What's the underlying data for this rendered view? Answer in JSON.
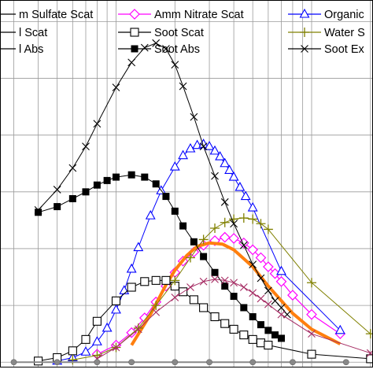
{
  "chart_data": {
    "type": "line",
    "title": "",
    "xlabel": "",
    "ylabel": "",
    "x_scale": "log",
    "grid": true,
    "legend": "top",
    "series": [
      {
        "name": "m Sulfate Scat",
        "color": "#000000",
        "marker": "none",
        "width": 1,
        "points": [
          [
            0.05,
            0.0
          ],
          [
            0.1,
            0.0
          ],
          [
            0.2,
            0.0
          ],
          [
            0.5,
            0.0
          ]
        ]
      },
      {
        "name": "Amm Nitrate Scat",
        "color": "#ff00ff",
        "marker": "diamond",
        "width": 1.2,
        "points": [
          [
            0.08,
            0.7
          ],
          [
            0.1,
            1.5
          ],
          [
            0.12,
            2.6
          ],
          [
            0.14,
            3.9
          ],
          [
            0.16,
            5.3
          ],
          [
            0.18,
            6.7
          ],
          [
            0.2,
            7.9
          ],
          [
            0.22,
            8.9
          ],
          [
            0.25,
            9.7
          ],
          [
            0.28,
            10.3
          ],
          [
            0.32,
            10.7
          ],
          [
            0.36,
            11.0
          ],
          [
            0.4,
            10.9
          ],
          [
            0.45,
            10.5
          ],
          [
            0.5,
            9.9
          ],
          [
            0.55,
            9.2
          ],
          [
            0.6,
            8.4
          ],
          [
            0.65,
            7.8
          ],
          [
            0.7,
            7.1
          ],
          [
            0.8,
            5.9
          ],
          [
            1.0,
            4.2
          ],
          [
            1.4,
            2.5
          ]
        ]
      },
      {
        "name": "Organic",
        "color": "#0000ff",
        "marker": "triangle",
        "width": 1,
        "points": [
          [
            0.05,
            0.1
          ],
          [
            0.06,
            0.4
          ],
          [
            0.07,
            0.9
          ],
          [
            0.08,
            1.8
          ],
          [
            0.09,
            3.0
          ],
          [
            0.1,
            4.6
          ],
          [
            0.11,
            6.3
          ],
          [
            0.12,
            8.2
          ],
          [
            0.13,
            10.1
          ],
          [
            0.15,
            12.9
          ],
          [
            0.17,
            15.1
          ],
          [
            0.2,
            17.2
          ],
          [
            0.22,
            18.2
          ],
          [
            0.24,
            18.8
          ],
          [
            0.26,
            19.1
          ],
          [
            0.28,
            19.2
          ],
          [
            0.3,
            19.0
          ],
          [
            0.32,
            18.6
          ],
          [
            0.34,
            18.1
          ],
          [
            0.36,
            17.5
          ],
          [
            0.38,
            16.9
          ],
          [
            0.4,
            16.3
          ],
          [
            0.43,
            15.4
          ],
          [
            0.46,
            14.6
          ],
          [
            0.5,
            13.6
          ],
          [
            0.7,
            8.0
          ],
          [
            1.4,
            2.8
          ]
        ]
      },
      {
        "name": "l Scat",
        "color": "#ff7f0e",
        "marker": "none",
        "width": 4,
        "points": [
          [
            0.12,
            1.5
          ],
          [
            0.15,
            4.2
          ],
          [
            0.18,
            6.8
          ],
          [
            0.2,
            8.1
          ],
          [
            0.23,
            9.4
          ],
          [
            0.26,
            10.2
          ],
          [
            0.3,
            10.5
          ],
          [
            0.35,
            10.4
          ],
          [
            0.4,
            9.9
          ],
          [
            0.5,
            8.4
          ],
          [
            0.6,
            6.7
          ],
          [
            0.8,
            4.3
          ],
          [
            1.0,
            2.9
          ],
          [
            1.4,
            1.6
          ]
        ]
      },
      {
        "name": "Soot Scat",
        "color": "#000000",
        "marker": "square-open",
        "width": 1,
        "points": [
          [
            0.04,
            0.1
          ],
          [
            0.05,
            0.4
          ],
          [
            0.06,
            1.0
          ],
          [
            0.07,
            2.0
          ],
          [
            0.08,
            3.6
          ],
          [
            0.1,
            5.4
          ],
          [
            0.12,
            6.6
          ],
          [
            0.14,
            7.1
          ],
          [
            0.16,
            7.2
          ],
          [
            0.18,
            7.2
          ],
          [
            0.2,
            6.7
          ],
          [
            0.22,
            6.2
          ],
          [
            0.25,
            5.5
          ],
          [
            0.28,
            4.8
          ],
          [
            0.32,
            4.0
          ],
          [
            0.36,
            3.4
          ],
          [
            0.4,
            2.9
          ],
          [
            0.45,
            2.4
          ],
          [
            0.5,
            2.0
          ],
          [
            0.55,
            1.7
          ],
          [
            0.6,
            1.5
          ],
          [
            1.0,
            0.7
          ],
          [
            2.0,
            0.3
          ]
        ]
      },
      {
        "name": "Water S",
        "color": "#808000",
        "marker": "plus",
        "width": 1,
        "points": [
          [
            0.06,
            0.2
          ],
          [
            0.08,
            0.6
          ],
          [
            0.1,
            1.3
          ],
          [
            0.13,
            3.0
          ],
          [
            0.16,
            5.0
          ],
          [
            0.2,
            7.2
          ],
          [
            0.24,
            9.2
          ],
          [
            0.28,
            10.8
          ],
          [
            0.32,
            11.8
          ],
          [
            0.36,
            12.3
          ],
          [
            0.4,
            12.6
          ],
          [
            0.45,
            12.7
          ],
          [
            0.5,
            12.6
          ],
          [
            0.55,
            12.2
          ],
          [
            0.6,
            11.7
          ],
          [
            1.0,
            7.0
          ],
          [
            2.0,
            2.5
          ]
        ]
      },
      {
        "name": "l Abs",
        "color": "#000000",
        "marker": "none",
        "width": 1,
        "points": [
          [
            0.05,
            0.0
          ],
          [
            0.1,
            0.0
          ],
          [
            0.2,
            0.0
          ],
          [
            0.5,
            0.0
          ]
        ]
      },
      {
        "name": "Soot Abs",
        "color": "#000000",
        "marker": "square-filled",
        "width": 1,
        "points": [
          [
            0.04,
            13.2
          ],
          [
            0.05,
            13.7
          ],
          [
            0.06,
            14.4
          ],
          [
            0.07,
            15.0
          ],
          [
            0.08,
            15.6
          ],
          [
            0.09,
            16.0
          ],
          [
            0.1,
            16.3
          ],
          [
            0.12,
            16.5
          ],
          [
            0.14,
            16.3
          ],
          [
            0.16,
            15.7
          ],
          [
            0.18,
            14.6
          ],
          [
            0.2,
            13.3
          ],
          [
            0.22,
            12.0
          ],
          [
            0.25,
            10.6
          ],
          [
            0.28,
            9.3
          ],
          [
            0.32,
            7.9
          ],
          [
            0.36,
            6.7
          ],
          [
            0.4,
            5.8
          ],
          [
            0.45,
            4.8
          ],
          [
            0.5,
            4.0
          ],
          [
            0.55,
            3.3
          ],
          [
            0.6,
            2.8
          ],
          [
            0.65,
            2.4
          ],
          [
            0.7,
            2.1
          ]
        ]
      },
      {
        "name": "Soot Ex",
        "color": "#000000",
        "marker": "x",
        "width": 1,
        "points": [
          [
            0.04,
            13.4
          ],
          [
            0.05,
            15.2
          ],
          [
            0.06,
            17.1
          ],
          [
            0.07,
            19.0
          ],
          [
            0.08,
            21.0
          ],
          [
            0.1,
            24.2
          ],
          [
            0.12,
            26.4
          ],
          [
            0.14,
            27.7
          ],
          [
            0.16,
            28.1
          ],
          [
            0.18,
            27.6
          ],
          [
            0.2,
            26.2
          ],
          [
            0.22,
            24.3
          ],
          [
            0.25,
            21.6
          ],
          [
            0.28,
            19.0
          ],
          [
            0.32,
            16.4
          ],
          [
            0.36,
            14.1
          ],
          [
            0.4,
            12.2
          ],
          [
            0.45,
            10.3
          ],
          [
            0.5,
            8.6
          ],
          [
            0.55,
            7.4
          ],
          [
            0.6,
            6.3
          ],
          [
            0.65,
            5.4
          ],
          [
            0.7,
            4.8
          ],
          [
            0.75,
            4.2
          ]
        ]
      },
      {
        "name": "",
        "color": "#a52a62",
        "marker": "x",
        "width": 1,
        "points": [
          [
            0.08,
            0.3
          ],
          [
            0.1,
            1.3
          ],
          [
            0.13,
            2.9
          ],
          [
            0.16,
            4.4
          ],
          [
            0.2,
            5.7
          ],
          [
            0.24,
            6.6
          ],
          [
            0.28,
            7.1
          ],
          [
            0.32,
            7.3
          ],
          [
            0.36,
            7.2
          ],
          [
            0.4,
            7.0
          ],
          [
            0.45,
            6.6
          ],
          [
            0.5,
            6.1
          ],
          [
            0.55,
            5.6
          ],
          [
            0.6,
            5.1
          ],
          [
            0.7,
            4.2
          ],
          [
            1.0,
            2.5
          ],
          [
            2.0,
            0.8
          ]
        ]
      },
      {
        "name": "",
        "color": "#888888",
        "marker": "circle",
        "width": 2,
        "points": [
          [
            0.03,
            0.0
          ],
          [
            0.05,
            0.0
          ],
          [
            0.08,
            0.0
          ],
          [
            0.12,
            0.0
          ],
          [
            0.2,
            0.0
          ],
          [
            0.3,
            0.0
          ],
          [
            0.5,
            0.0
          ],
          [
            0.8,
            0.0
          ],
          [
            1.5,
            0.0
          ]
        ]
      }
    ],
    "legend_entries": [
      {
        "label": "m Sulfate Scat",
        "color": "#000000",
        "marker": "none"
      },
      {
        "label": "Amm Nitrate Scat",
        "color": "#ff00ff",
        "marker": "diamond"
      },
      {
        "label": "Organic",
        "color": "#0000ff",
        "marker": "triangle"
      },
      {
        "label": "l Scat",
        "color": "#000000",
        "marker": "none"
      },
      {
        "label": "Soot Scat",
        "color": "#000000",
        "marker": "square-open"
      },
      {
        "label": "Water S",
        "color": "#808000",
        "marker": "plus"
      },
      {
        "label": "l Abs",
        "color": "#000000",
        "marker": "none"
      },
      {
        "label": "Soot Abs",
        "color": "#000000",
        "marker": "square-filled"
      },
      {
        "label": "Soot Ex",
        "color": "#000000",
        "marker": "x"
      }
    ]
  }
}
